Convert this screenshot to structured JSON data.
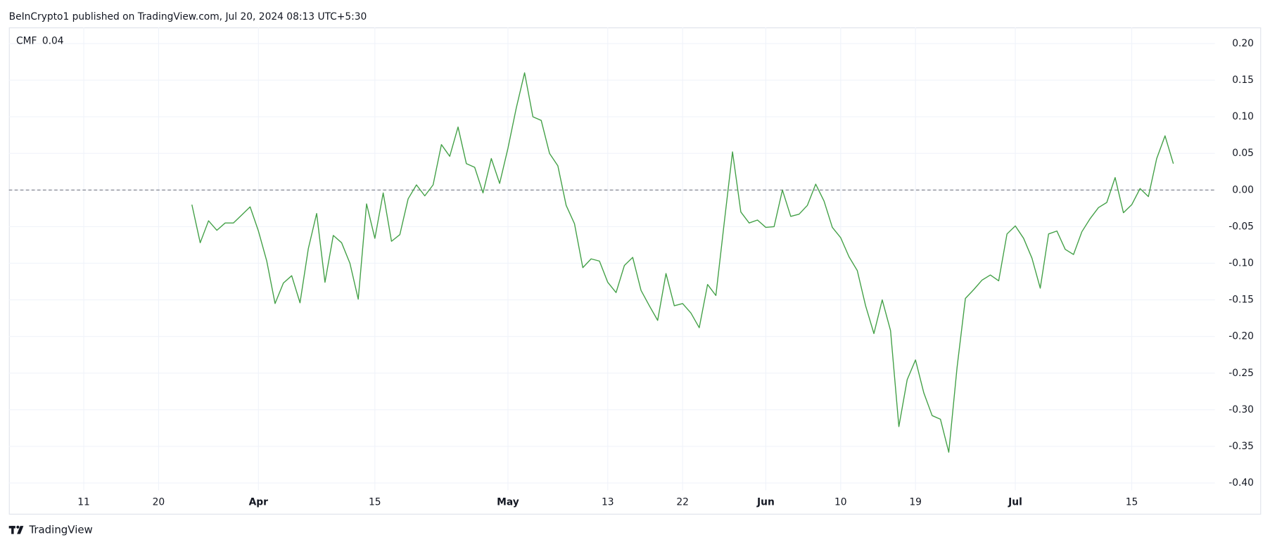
{
  "header": "BeInCrypto1 published on TradingView.com, Jul 20, 2024 08:13 UTC+5:30",
  "footer": "TradingView",
  "chart_data": {
    "type": "line",
    "x": [
      "2024-03-24",
      "2024-03-25",
      "2024-03-26",
      "2024-03-27",
      "2024-03-28",
      "2024-03-29",
      "2024-03-30",
      "2024-03-31",
      "2024-04-01",
      "2024-04-02",
      "2024-04-03",
      "2024-04-04",
      "2024-04-05",
      "2024-04-06",
      "2024-04-07",
      "2024-04-08",
      "2024-04-09",
      "2024-04-10",
      "2024-04-11",
      "2024-04-12",
      "2024-04-13",
      "2024-04-14",
      "2024-04-15",
      "2024-04-16",
      "2024-04-17",
      "2024-04-18",
      "2024-04-19",
      "2024-04-20",
      "2024-04-21",
      "2024-04-22",
      "2024-04-23",
      "2024-04-24",
      "2024-04-25",
      "2024-04-26",
      "2024-04-27",
      "2024-04-28",
      "2024-04-29",
      "2024-04-30",
      "2024-05-01",
      "2024-05-02",
      "2024-05-03",
      "2024-05-04",
      "2024-05-05",
      "2024-05-06",
      "2024-05-07",
      "2024-05-08",
      "2024-05-09",
      "2024-05-10",
      "2024-05-11",
      "2024-05-12",
      "2024-05-13",
      "2024-05-14",
      "2024-05-15",
      "2024-05-16",
      "2024-05-17",
      "2024-05-18",
      "2024-05-19",
      "2024-05-20",
      "2024-05-21",
      "2024-05-22",
      "2024-05-23",
      "2024-05-24",
      "2024-05-25",
      "2024-05-26",
      "2024-05-27",
      "2024-05-28",
      "2024-05-29",
      "2024-05-30",
      "2024-05-31",
      "2024-06-01",
      "2024-06-02",
      "2024-06-03",
      "2024-06-04",
      "2024-06-05",
      "2024-06-06",
      "2024-06-07",
      "2024-06-08",
      "2024-06-09",
      "2024-06-10",
      "2024-06-11",
      "2024-06-12",
      "2024-06-13",
      "2024-06-14",
      "2024-06-15",
      "2024-06-16",
      "2024-06-17",
      "2024-06-18",
      "2024-06-19",
      "2024-06-20",
      "2024-06-21",
      "2024-06-22",
      "2024-06-23",
      "2024-06-24",
      "2024-06-25",
      "2024-06-26",
      "2024-06-27",
      "2024-06-28",
      "2024-06-29",
      "2024-06-30",
      "2024-07-01",
      "2024-07-02",
      "2024-07-03",
      "2024-07-04",
      "2024-07-05",
      "2024-07-06",
      "2024-07-07",
      "2024-07-08",
      "2024-07-09",
      "2024-07-10",
      "2024-07-11",
      "2024-07-12",
      "2024-07-13",
      "2024-07-14",
      "2024-07-15",
      "2024-07-16",
      "2024-07-17",
      "2024-07-18",
      "2024-07-19",
      "2024-07-20"
    ],
    "series": [
      {
        "name": "CMF",
        "color": "#43a047",
        "legend_value": 0.04,
        "values": [
          -0.02,
          -0.072,
          -0.042,
          -0.055,
          -0.045,
          -0.045,
          -0.034,
          -0.023,
          -0.056,
          -0.097,
          -0.155,
          -0.127,
          -0.117,
          -0.154,
          -0.08,
          -0.032,
          -0.126,
          -0.062,
          -0.072,
          -0.1,
          -0.149,
          -0.019,
          -0.066,
          -0.004,
          -0.07,
          -0.061,
          -0.012,
          0.007,
          -0.008,
          0.007,
          0.062,
          0.046,
          0.086,
          0.036,
          0.031,
          -0.004,
          0.043,
          0.009,
          0.057,
          0.112,
          0.16,
          0.1,
          0.095,
          0.05,
          0.033,
          -0.021,
          -0.046,
          -0.106,
          -0.094,
          -0.097,
          -0.126,
          -0.14,
          -0.103,
          -0.092,
          -0.137,
          -0.158,
          -0.178,
          -0.114,
          -0.158,
          -0.155,
          -0.168,
          -0.188,
          -0.129,
          -0.144,
          -0.045,
          0.052,
          -0.03,
          -0.045,
          -0.041,
          -0.051,
          -0.05,
          0,
          -0.036,
          -0.033,
          -0.021,
          0.008,
          -0.015,
          -0.051,
          -0.065,
          -0.091,
          -0.11,
          -0.158,
          -0.196,
          -0.15,
          -0.192,
          -0.323,
          -0.259,
          -0.232,
          -0.277,
          -0.308,
          -0.313,
          -0.358,
          -0.242,
          -0.148,
          -0.136,
          -0.123,
          -0.116,
          -0.124,
          -0.06,
          -0.049,
          -0.066,
          -0.093,
          -0.134,
          -0.06,
          -0.056,
          -0.081,
          -0.088,
          -0.057,
          -0.039,
          -0.024,
          -0.017,
          0.017,
          -0.031,
          -0.02,
          0.002,
          -0.009,
          0.043,
          0.074,
          0.036
        ]
      }
    ],
    "xlim": [
      "2024-03-02",
      "2024-07-25"
    ],
    "xticks": [
      {
        "value": "2024-03-11",
        "label": "11"
      },
      {
        "value": "2024-03-20",
        "label": "20"
      },
      {
        "value": "2024-04-01",
        "label": "Apr"
      },
      {
        "value": "2024-04-15",
        "label": "15"
      },
      {
        "value": "2024-05-01",
        "label": "May"
      },
      {
        "value": "2024-05-13",
        "label": "13"
      },
      {
        "value": "2024-05-22",
        "label": "22"
      },
      {
        "value": "2024-06-01",
        "label": "Jun"
      },
      {
        "value": "2024-06-10",
        "label": "10"
      },
      {
        "value": "2024-06-19",
        "label": "19"
      },
      {
        "value": "2024-07-01",
        "label": "Jul"
      },
      {
        "value": "2024-07-15",
        "label": "15"
      }
    ],
    "ylim": [
      -0.41,
      0.222
    ],
    "yticks": [
      {
        "value": 0.2,
        "label": "0.20"
      },
      0.15,
      {
        "value": 0.1,
        "label": "0.10"
      },
      0.05,
      {
        "value": 0,
        "label": "0.00"
      },
      -0.05,
      {
        "value": -0.1,
        "label": "-0.10"
      },
      -0.15,
      {
        "value": -0.2,
        "label": "-0.20"
      },
      -0.25,
      {
        "value": -0.3,
        "label": "-0.30"
      },
      -0.35,
      {
        "value": -0.4,
        "label": "-0.40"
      }
    ],
    "grid": true,
    "baseline": 0
  }
}
